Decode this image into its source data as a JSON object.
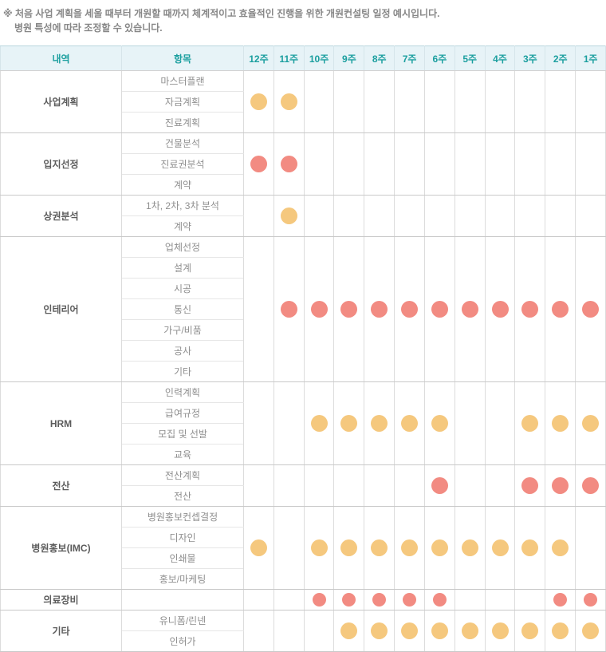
{
  "note": {
    "line1": "※ 처음 사업 계획을 세울 때부터 개원할 때까지 체계적이고 효율적인 진행을 위한 개원컨설팅 일정 예시입니다.",
    "line2": "병원 특성에 따라 조정할 수 있습니다."
  },
  "colors": {
    "dot_yellow": "#f5c87e",
    "dot_red": "#f28b82",
    "header_text": "#1b9f9f",
    "header_bg": "#e7f3f7"
  },
  "chart_data": {
    "type": "table",
    "subtype": "gantt-dot-schedule",
    "title": "개원컨설팅 일정 예시",
    "column_headers": {
      "category": "내역",
      "item": "항목"
    },
    "week_columns": [
      "12주",
      "11주",
      "10주",
      "9주",
      "8주",
      "7주",
      "6주",
      "5주",
      "4주",
      "3주",
      "2주",
      "1주"
    ],
    "legend": {
      "yellow": "dot_yellow",
      "red": "dot_red"
    },
    "groups": [
      {
        "category": "사업계획",
        "items": [
          "마스터플랜",
          "자금계획",
          "진료계획"
        ],
        "dot_color": "yellow",
        "marked_weeks": [
          "12주",
          "11주"
        ]
      },
      {
        "category": "입지선정",
        "items": [
          "건물분석",
          "진료권분석",
          "계약"
        ],
        "dot_color": "red",
        "marked_weeks": [
          "12주",
          "11주"
        ]
      },
      {
        "category": "상권분석",
        "items": [
          "1차, 2차, 3차 분석",
          "계약"
        ],
        "dot_color": "yellow",
        "marked_weeks": [
          "11주"
        ]
      },
      {
        "category": "인테리어",
        "items": [
          "업체선정",
          "설계",
          "시공",
          "통신",
          "가구/비품",
          "공사",
          "기타"
        ],
        "dot_color": "red",
        "marked_weeks": [
          "11주",
          "10주",
          "9주",
          "8주",
          "7주",
          "6주",
          "5주",
          "4주",
          "3주",
          "2주",
          "1주"
        ]
      },
      {
        "category": "HRM",
        "items": [
          "인력계획",
          "급여규정",
          "모집 및 선발",
          "교육"
        ],
        "dot_color": "yellow",
        "marked_weeks": [
          "10주",
          "9주",
          "8주",
          "7주",
          "6주",
          "3주",
          "2주",
          "1주"
        ]
      },
      {
        "category": "전산",
        "items": [
          "전산계획",
          "전산"
        ],
        "dot_color": "red",
        "marked_weeks": [
          "6주",
          "3주",
          "2주",
          "1주"
        ]
      },
      {
        "category": "병원홍보(IMC)",
        "items": [
          "병원홍보컨셉결정",
          "디자인",
          "인쇄물",
          "홍보/마케팅"
        ],
        "dot_color": "yellow",
        "marked_weeks": [
          "12주",
          "10주",
          "9주",
          "8주",
          "7주",
          "6주",
          "5주",
          "4주",
          "3주",
          "2주"
        ]
      },
      {
        "category": "의료장비",
        "items": [],
        "dot_color": "red",
        "marked_weeks": [
          "10주",
          "9주",
          "8주",
          "7주",
          "6주",
          "2주",
          "1주"
        ]
      },
      {
        "category": "기타",
        "items": [
          "유니폼/린넨",
          "인허가"
        ],
        "dot_color": "yellow",
        "marked_weeks": [
          "9주",
          "8주",
          "7주",
          "6주",
          "5주",
          "4주",
          "3주",
          "2주",
          "1주"
        ]
      }
    ]
  }
}
